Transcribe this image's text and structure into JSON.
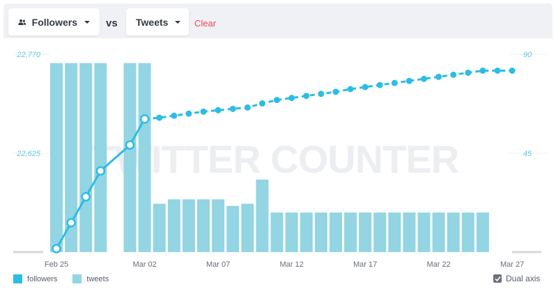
{
  "toolbar": {
    "metric1_label": "Followers",
    "metric1_icon": "users-icon",
    "vs_label": "vs",
    "metric2_label": "Tweets",
    "clear_label": "Clear"
  },
  "watermark": "TWITTER COUNTER",
  "legend": {
    "followers_label": "followers",
    "tweets_label": "tweets",
    "dual_axis_label": "Dual axis",
    "dual_axis_checked": true
  },
  "colors": {
    "followers": "#2dbde4",
    "tweets": "#93d5e2",
    "axis_label": "#5bc8e4",
    "clear": "#e8475a"
  },
  "chart_data": {
    "type": "bar",
    "x_tick_labels": [
      "Feb 25",
      "Mar 02",
      "Mar 07",
      "Mar 12",
      "Mar 17",
      "Mar 22",
      "Mar 27"
    ],
    "x_range": [
      "Feb 25",
      "Mar 27"
    ],
    "y_left": {
      "ticks": [
        "22,770",
        "22,625"
      ],
      "range": [
        22480,
        22770
      ]
    },
    "y_right": {
      "ticks": [
        "90",
        "45"
      ],
      "range": [
        0,
        90
      ]
    },
    "series": [
      {
        "name": "tweets",
        "type": "bar",
        "axis": "right",
        "dates": [
          "Feb 25",
          "Feb 26",
          "Feb 27",
          "Feb 28",
          "Mar 01",
          "Mar 02",
          "Mar 03",
          "Mar 04",
          "Mar 05",
          "Mar 06",
          "Mar 07",
          "Mar 08",
          "Mar 09",
          "Mar 10",
          "Mar 11",
          "Mar 12",
          "Mar 13",
          "Mar 14",
          "Mar 15",
          "Mar 16",
          "Mar 17",
          "Mar 18",
          "Mar 19",
          "Mar 20",
          "Mar 21",
          "Mar 22",
          "Mar 23",
          "Mar 24",
          "Mar 25"
        ],
        "values": [
          86,
          86,
          86,
          86,
          86,
          86,
          22,
          24,
          24,
          24,
          24,
          21,
          22,
          33,
          18,
          18,
          18,
          18,
          18,
          18,
          18,
          18,
          18,
          18,
          18,
          18,
          18,
          18,
          18
        ]
      },
      {
        "name": "followers",
        "type": "line",
        "axis": "left",
        "dates": [
          "Feb 25",
          "Feb 26",
          "Feb 27",
          "Feb 28",
          "Mar 01",
          "Mar 02",
          "Mar 03",
          "Mar 04",
          "Mar 05",
          "Mar 06",
          "Mar 07",
          "Mar 08",
          "Mar 09",
          "Mar 10",
          "Mar 11",
          "Mar 12",
          "Mar 13",
          "Mar 14",
          "Mar 15",
          "Mar 16",
          "Mar 17",
          "Mar 18",
          "Mar 19",
          "Mar 20",
          "Mar 21",
          "Mar 22",
          "Mar 23",
          "Mar 24",
          "Mar 25",
          "Mar 26",
          "Mar 27"
        ],
        "values": [
          22485,
          22523,
          22561,
          22599,
          22637,
          22675,
          22677,
          22680,
          22683,
          22686,
          22688,
          22690,
          22692,
          22698,
          22703,
          22706,
          22709,
          22712,
          22715,
          22719,
          22722,
          22725,
          22728,
          22731,
          22734,
          22737,
          22740,
          22743,
          22746,
          22746,
          22746
        ]
      }
    ]
  }
}
